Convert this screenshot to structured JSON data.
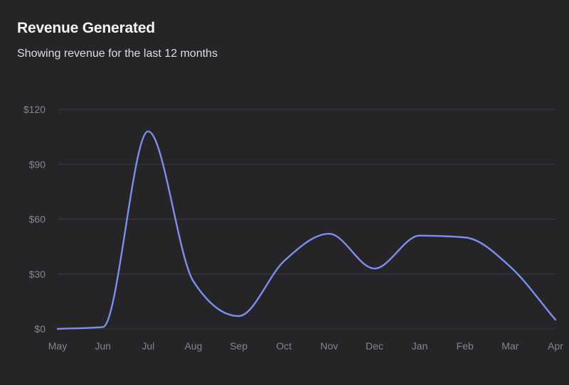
{
  "card": {
    "title": "Revenue Generated",
    "subtitle": "Showing revenue for the last 12 months"
  },
  "colors": {
    "background": "#252528",
    "line": "#7b8ff0",
    "grid": "#3c3c41",
    "tick_text": "#85858c"
  },
  "chart_data": {
    "type": "line",
    "categories": [
      "May",
      "Jun",
      "Jul",
      "Aug",
      "Sep",
      "Oct",
      "Nov",
      "Dec",
      "Jan",
      "Feb",
      "Mar",
      "Apr"
    ],
    "series": [
      {
        "values": [
          0,
          1,
          108,
          26,
          7,
          37,
          52,
          33,
          51,
          50,
          34,
          5
        ]
      }
    ],
    "y_ticks": [
      "$0",
      "$30",
      "$60",
      "$90",
      "$120"
    ],
    "y_tick_values": [
      0,
      30,
      60,
      90,
      120
    ],
    "ylim": [
      0,
      120
    ],
    "grid": "horizontal",
    "curve": "smooth",
    "legend": "none"
  }
}
